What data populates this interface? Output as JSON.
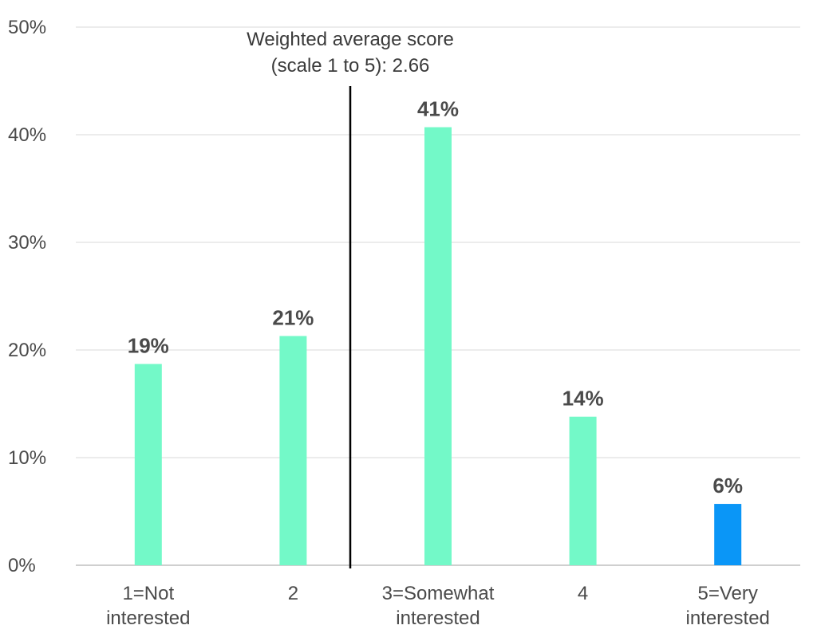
{
  "chart_data": {
    "type": "bar",
    "categories": [
      [
        "1=Not",
        "interested"
      ],
      [
        "2"
      ],
      [
        "3=Somewhat",
        "interested"
      ],
      [
        "4"
      ],
      [
        "5=Very",
        "interested"
      ]
    ],
    "values": [
      19,
      21,
      41,
      14,
      6
    ],
    "plotted_values": [
      18.7,
      21.3,
      40.7,
      13.8,
      5.7
    ],
    "data_labels": [
      "19%",
      "21%",
      "41%",
      "14%",
      "6%"
    ],
    "bar_colors": [
      "#73f9c8",
      "#73f9c8",
      "#73f9c8",
      "#73f9c8",
      "#0a96f7"
    ],
    "ylim": [
      0,
      50
    ],
    "yticks": [
      0,
      10,
      20,
      30,
      40,
      50
    ],
    "ytick_labels": [
      "0%",
      "10%",
      "20%",
      "30%",
      "40%",
      "50%"
    ],
    "grid": true,
    "annotation": {
      "lines": [
        "Weighted average score",
        "(scale 1 to 5): 2.66"
      ],
      "value": 2.66,
      "line_color": "#000000"
    }
  }
}
